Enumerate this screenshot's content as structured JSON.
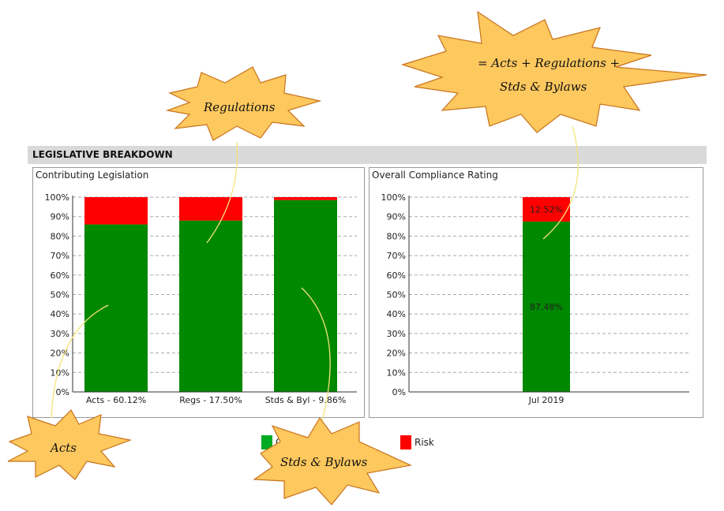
{
  "header": {
    "title": "LEGISLATIVE BREAKDOWN"
  },
  "colors": {
    "compliant": "#008800",
    "risk": "#ff0000",
    "legend_compliant": "#00aa22"
  },
  "chart_data": [
    {
      "type": "bar",
      "stacked": true,
      "title": "Contributing Legislation",
      "categories": [
        "Acts - 60.12%",
        "Regs - 17.50%",
        "Stds & Byl - 9.86%"
      ],
      "series": [
        {
          "values": [
            86,
            88,
            98.5
          ],
          "color": "#008800"
        },
        {
          "name": "Risk",
          "values": [
            14,
            12,
            1.5
          ],
          "color": "#ff0000"
        }
      ],
      "ylim": [
        0,
        100
      ],
      "yticks": [
        "0%",
        "10%",
        "20%",
        "30%",
        "40%",
        "50%",
        "60%",
        "70%",
        "80%",
        "90%",
        "100%"
      ],
      "grid": "dashed horizontal"
    },
    {
      "type": "bar",
      "stacked": true,
      "title": "Overall Compliance Rating",
      "categories": [
        "Jul 2019"
      ],
      "series": [
        {
          "values": [
            87.48
          ],
          "label": "87.48%",
          "color": "#008800"
        },
        {
          "name": "Risk",
          "values": [
            12.52
          ],
          "label": "12.52%",
          "color": "#ff0000"
        }
      ],
      "ylim": [
        0,
        100
      ],
      "yticks": [
        "0%",
        "10%",
        "20%",
        "30%",
        "40%",
        "50%",
        "60%",
        "70%",
        "80%",
        "90%",
        "100%"
      ],
      "grid": "dashed horizontal"
    }
  ],
  "legend": {
    "compliant_label": "C",
    "risk_label": "Risk"
  },
  "callouts": {
    "acts": "Acts",
    "regulations": "Regulations",
    "stds": "Stds & Bylaws",
    "overall_line1": "= Acts + Regulations +",
    "overall_line2": "Stds & Bylaws"
  }
}
